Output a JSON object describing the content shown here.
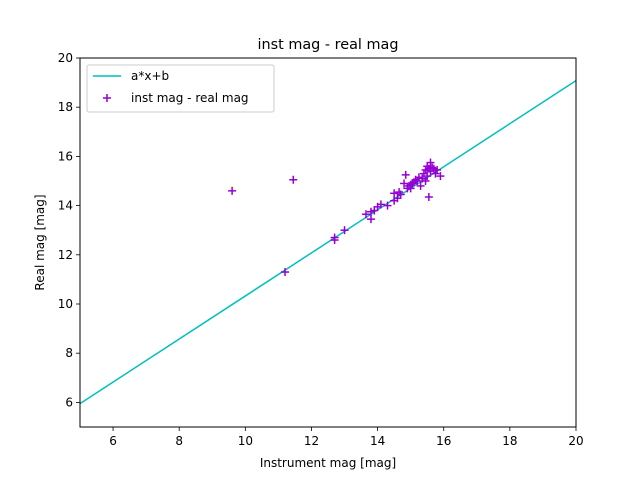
{
  "chart_data": {
    "type": "scatter",
    "title": "inst mag - real mag",
    "xlabel": "Instrument mag [mag]",
    "ylabel": "Real mag [mag]",
    "xlim": [
      5,
      20
    ],
    "ylim": [
      5,
      20
    ],
    "xticks": [
      6,
      8,
      10,
      12,
      14,
      16,
      18,
      20
    ],
    "yticks": [
      6,
      8,
      10,
      12,
      14,
      16,
      18,
      20
    ],
    "grid": false,
    "legend_position": "upper-left",
    "colors": {
      "line": "#00bfbf",
      "points": "#9400d3"
    },
    "line": {
      "name": "a*x+b",
      "x": [
        5,
        20
      ],
      "y": [
        5.95,
        19.08
      ]
    },
    "scatter": {
      "name": "inst mag - real mag",
      "marker": "plus",
      "points": [
        [
          9.6,
          14.6
        ],
        [
          11.45,
          15.05
        ],
        [
          11.2,
          11.3
        ],
        [
          12.7,
          12.6
        ],
        [
          12.7,
          12.7
        ],
        [
          13.0,
          13.0
        ],
        [
          13.65,
          13.65
        ],
        [
          13.8,
          13.75
        ],
        [
          13.8,
          13.45
        ],
        [
          13.9,
          13.8
        ],
        [
          14.0,
          13.95
        ],
        [
          14.1,
          14.05
        ],
        [
          14.3,
          14.0
        ],
        [
          14.5,
          14.2
        ],
        [
          14.5,
          14.5
        ],
        [
          14.6,
          14.3
        ],
        [
          14.65,
          14.55
        ],
        [
          14.7,
          14.45
        ],
        [
          14.8,
          14.9
        ],
        [
          14.85,
          15.25
        ],
        [
          14.9,
          14.7
        ],
        [
          14.95,
          14.8
        ],
        [
          15.0,
          14.85
        ],
        [
          15.05,
          14.9
        ],
        [
          15.1,
          14.95
        ],
        [
          15.15,
          15.05
        ],
        [
          15.2,
          15.0
        ],
        [
          15.25,
          15.15
        ],
        [
          15.3,
          14.8
        ],
        [
          15.35,
          15.1
        ],
        [
          15.4,
          15.3
        ],
        [
          15.45,
          15.45
        ],
        [
          15.5,
          15.2
        ],
        [
          15.5,
          15.6
        ],
        [
          15.55,
          15.5
        ],
        [
          15.55,
          14.35
        ],
        [
          15.6,
          15.4
        ],
        [
          15.6,
          15.75
        ],
        [
          15.65,
          15.55
        ],
        [
          15.7,
          15.5
        ],
        [
          15.75,
          15.3
        ],
        [
          15.8,
          15.45
        ],
        [
          15.9,
          15.2
        ],
        [
          15.45,
          15.0
        ],
        [
          15.0,
          14.7
        ]
      ]
    }
  }
}
